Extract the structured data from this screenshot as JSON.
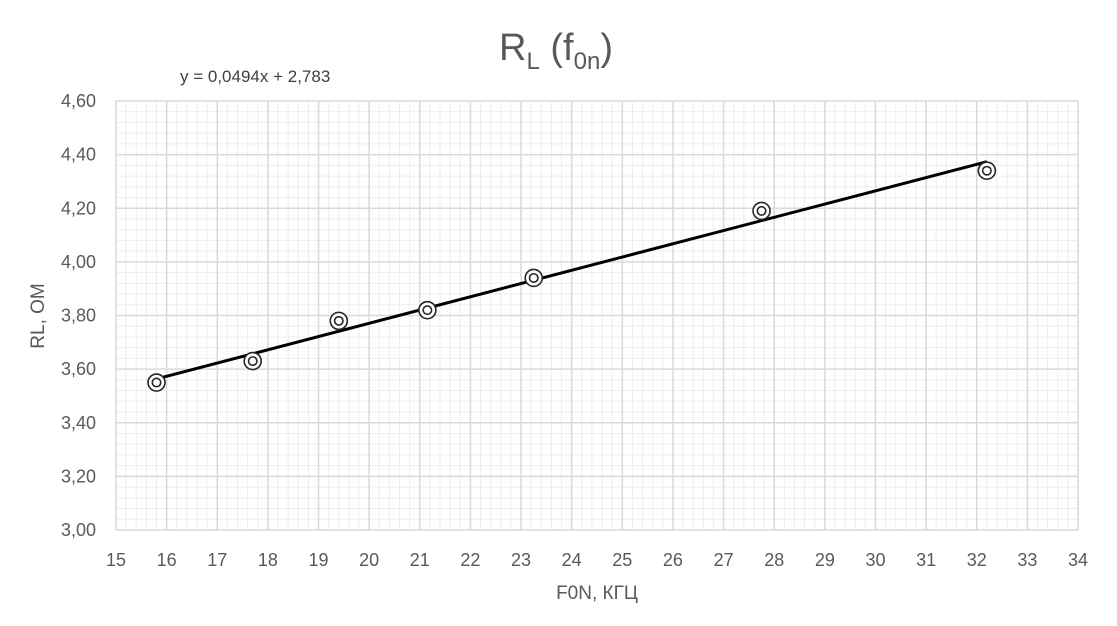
{
  "chart_data": {
    "type": "scatter",
    "title": {
      "main": "R",
      "main_sub": "L",
      "open": " (f",
      "arg_sub": "0n",
      "close": ")"
    },
    "xlabel": "F0N, КГЦ",
    "ylabel": "RL, ОМ",
    "xlim": [
      15,
      34
    ],
    "ylim": [
      3.0,
      4.6
    ],
    "x_ticks": [
      15,
      16,
      17,
      18,
      19,
      20,
      21,
      22,
      23,
      24,
      25,
      26,
      27,
      28,
      29,
      30,
      31,
      32,
      33,
      34
    ],
    "x_tick_labels": [
      "15",
      "16",
      "17",
      "18",
      "19",
      "20",
      "21",
      "22",
      "23",
      "24",
      "25",
      "26",
      "27",
      "28",
      "29",
      "30",
      "31",
      "32",
      "33",
      "34"
    ],
    "y_ticks": [
      3.0,
      3.2,
      3.4,
      3.6,
      3.8,
      4.0,
      4.2,
      4.4,
      4.6
    ],
    "y_tick_labels": [
      "3,00",
      "3,20",
      "3,40",
      "3,60",
      "3,80",
      "4,00",
      "4,20",
      "4,40",
      "4,60"
    ],
    "grid": true,
    "minor_grid": true,
    "legend": "none",
    "series": [
      {
        "marker": "double-circle",
        "color": "#262626",
        "x": [
          15.8,
          17.7,
          19.4,
          21.15,
          23.25,
          27.75,
          32.2
        ],
        "y": [
          3.55,
          3.63,
          3.78,
          3.82,
          3.94,
          4.19,
          4.34
        ]
      }
    ],
    "trendline": {
      "type": "linear",
      "slope": 0.0494,
      "intercept": 2.783,
      "x_range": [
        15.8,
        32.2
      ],
      "color": "#000000",
      "equation_label": "y = 0,0494x + 2,783"
    },
    "colors": {
      "major_grid": "#d9d9d9",
      "minor_grid": "#ededed",
      "text": "#595959"
    }
  }
}
